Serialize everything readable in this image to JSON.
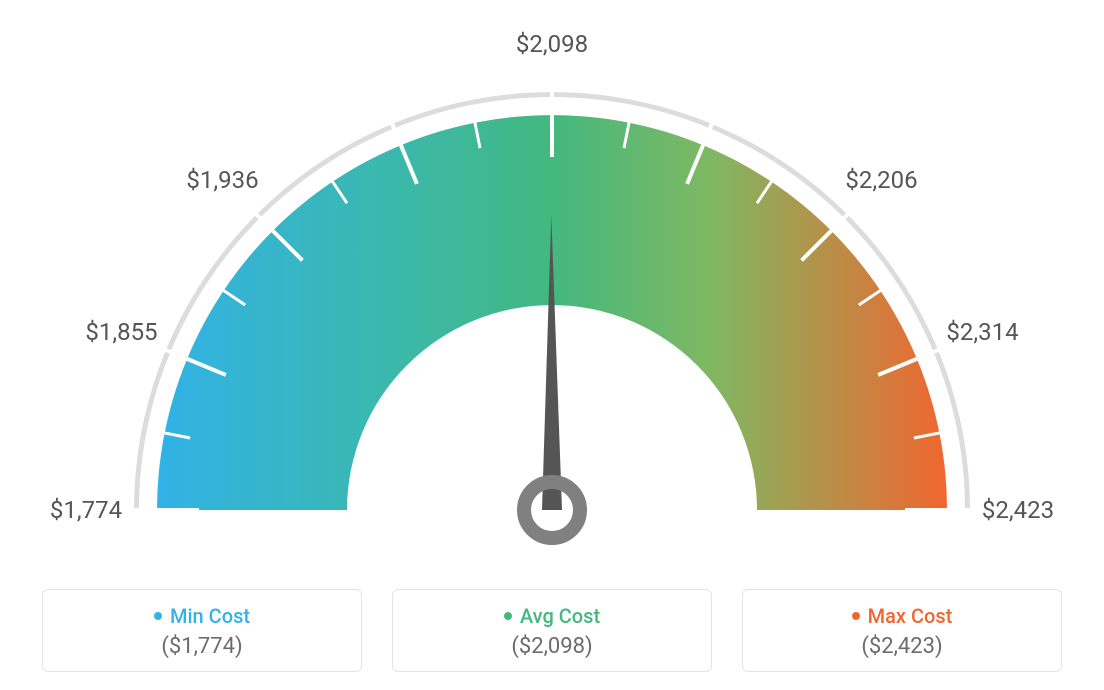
{
  "gauge": {
    "type": "gauge",
    "min_value": 1774,
    "max_value": 2423,
    "current_value": 2098,
    "tick_labels": [
      "$1,774",
      "$1,855",
      "$1,936",
      "",
      "$2,098",
      "",
      "$2,206",
      "$2,314",
      "$2,423"
    ],
    "arc_color_start": "#32b2e6",
    "arc_color_mid": "#43b87f",
    "arc_color_end": "#f1662f",
    "outer_rim_color": "#dcdcdc",
    "tick_color": "#ffffff",
    "minor_tick_color": "#ffffff",
    "needle_color": "#555555",
    "needle_ring_color": "#808080",
    "label_color": "#555555",
    "label_fontsize": 24,
    "background_color": "#ffffff",
    "outer_radius": 395,
    "inner_radius": 205,
    "rim_radius": 418,
    "angle_start_deg": 180,
    "angle_end_deg": 0
  },
  "summary": {
    "min": {
      "title": "Min Cost",
      "value": "($1,774)",
      "color": "#32b2e6"
    },
    "avg": {
      "title": "Avg Cost",
      "value": "($2,098)",
      "color": "#43b87f"
    },
    "max": {
      "title": "Max Cost",
      "value": "($2,423)",
      "color": "#f1662f"
    }
  }
}
